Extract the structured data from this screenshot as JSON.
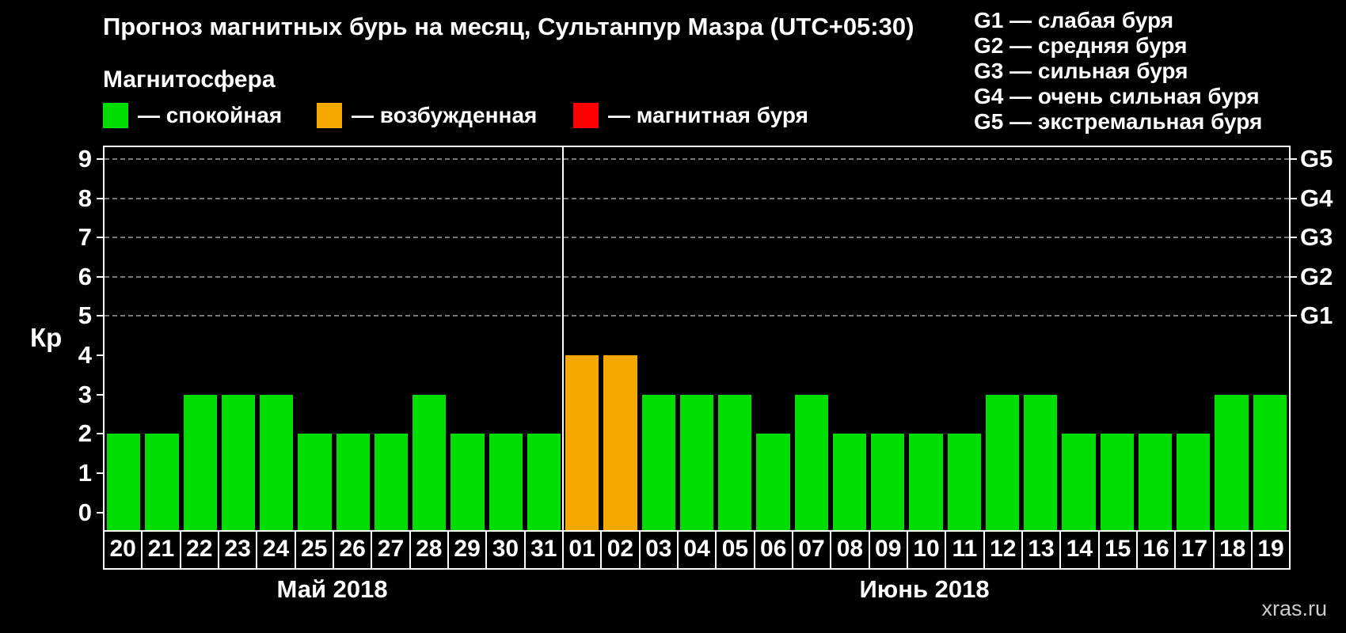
{
  "chart_data": {
    "type": "bar",
    "title": "Прогноз магнитных бурь на месяц, Сультанпур Мазра (UTC+05:30)",
    "ylabel": "Кр",
    "xlabel": "",
    "ylim": [
      0,
      9
    ],
    "yticks": [
      0,
      1,
      2,
      3,
      4,
      5,
      6,
      7,
      8,
      9
    ],
    "gridlines": [
      5,
      6,
      7,
      8,
      9
    ],
    "grid": "dashed horizontal lines at G1–G5 levels",
    "right_axis": [
      {
        "label": "G1",
        "value": 5
      },
      {
        "label": "G2",
        "value": 6
      },
      {
        "label": "G3",
        "value": 7
      },
      {
        "label": "G4",
        "value": 8
      },
      {
        "label": "G5",
        "value": 9
      }
    ],
    "categories": [
      "20",
      "21",
      "22",
      "23",
      "24",
      "25",
      "26",
      "27",
      "28",
      "29",
      "30",
      "31",
      "01",
      "02",
      "03",
      "04",
      "05",
      "06",
      "07",
      "08",
      "09",
      "10",
      "11",
      "12",
      "13",
      "14",
      "15",
      "16",
      "17",
      "18",
      "19"
    ],
    "values": [
      2,
      2,
      3,
      3,
      3,
      2,
      2,
      2,
      3,
      2,
      2,
      2,
      4,
      4,
      3,
      3,
      3,
      2,
      3,
      2,
      2,
      2,
      2,
      3,
      3,
      2,
      2,
      2,
      2,
      3,
      3
    ],
    "statuses": [
      "quiet",
      "quiet",
      "quiet",
      "quiet",
      "quiet",
      "quiet",
      "quiet",
      "quiet",
      "quiet",
      "quiet",
      "quiet",
      "quiet",
      "excited",
      "excited",
      "quiet",
      "quiet",
      "quiet",
      "quiet",
      "quiet",
      "quiet",
      "quiet",
      "quiet",
      "quiet",
      "quiet",
      "quiet",
      "quiet",
      "quiet",
      "quiet",
      "quiet",
      "quiet",
      "quiet"
    ],
    "months": [
      {
        "label": "Май 2018",
        "days": 12
      },
      {
        "label": "Июнь 2018",
        "days": 19
      }
    ]
  },
  "legend": {
    "header": "Магнитосфера",
    "items": [
      {
        "key": "quiet",
        "label": "— спокойная"
      },
      {
        "key": "excited",
        "label": "— возбужденная"
      },
      {
        "key": "storm",
        "label": "— магнитная буря"
      }
    ]
  },
  "g_scale": [
    "G1 — слабая буря",
    "G2 — средняя буря",
    "G3 — сильная буря",
    "G4 — очень сильная буря",
    "G5 — экстремальная буря"
  ],
  "colors": {
    "quiet": "#00dd00",
    "excited": "#f5a800",
    "storm": "#ff0000",
    "grid": "#777777",
    "axis": "#ffffff",
    "text": "#ffffff",
    "watermark": "#cccccc"
  },
  "watermark": "xras.ru"
}
